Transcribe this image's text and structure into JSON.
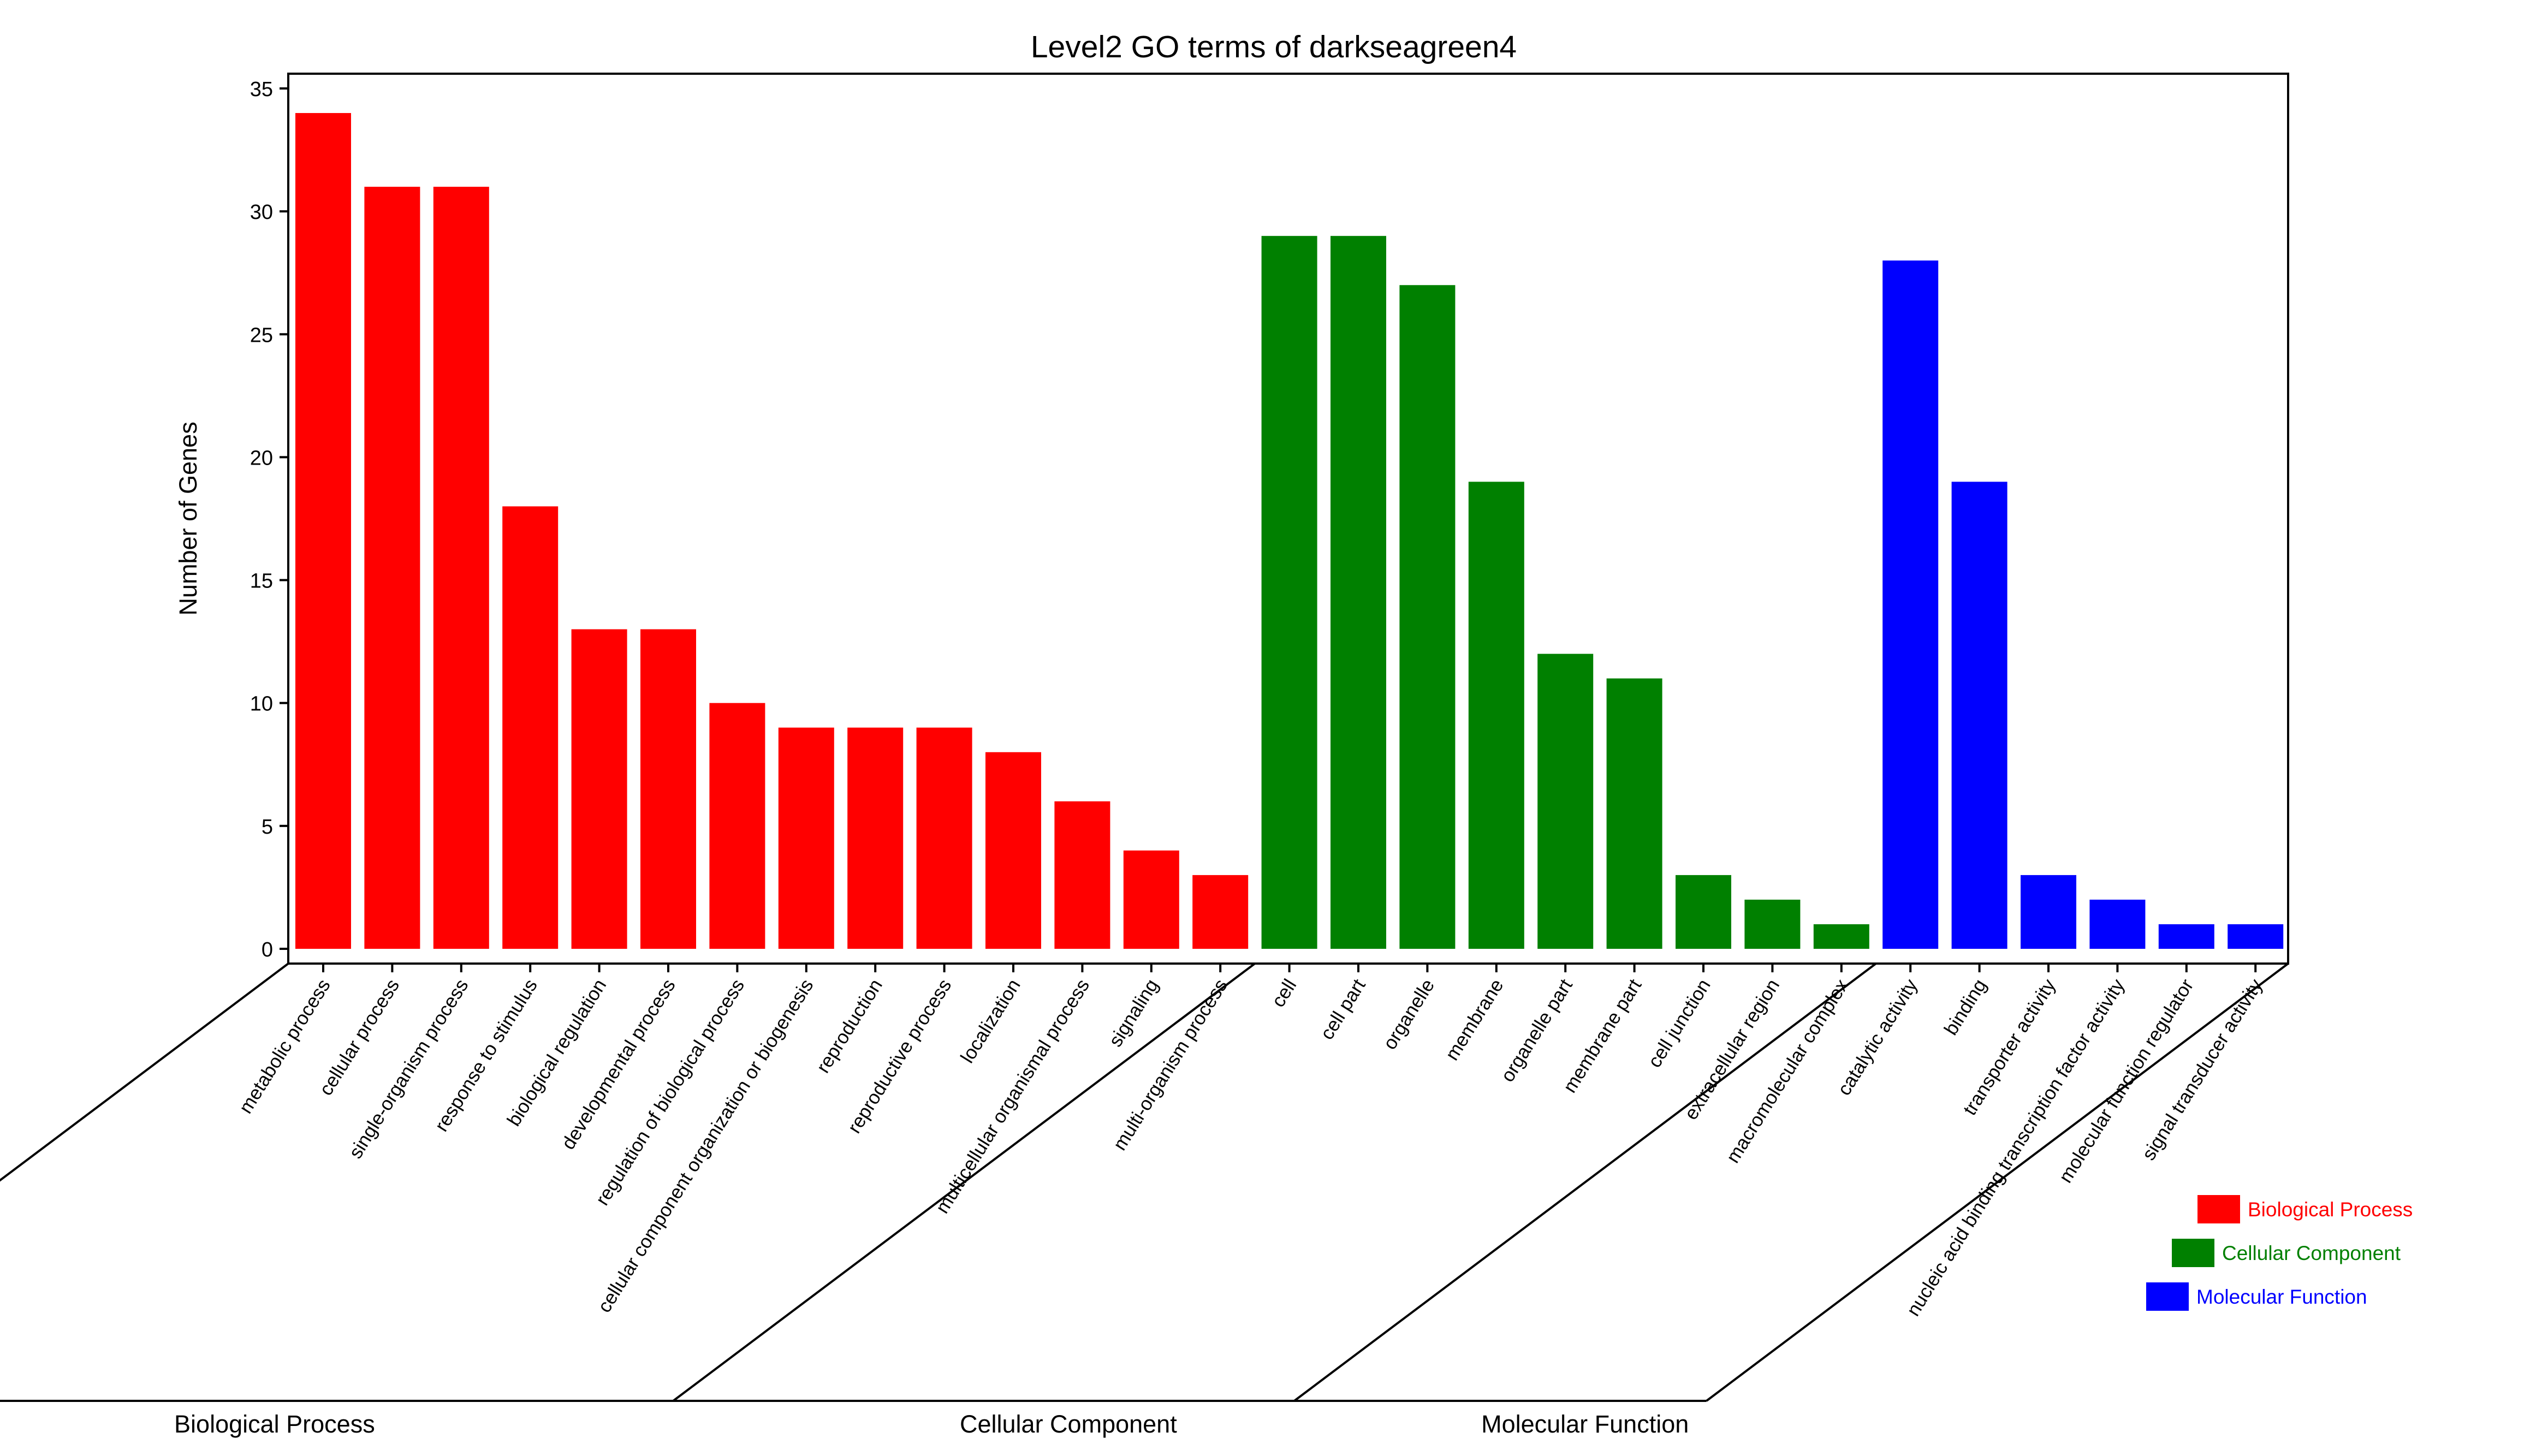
{
  "chart_data": {
    "type": "bar",
    "title": "Level2 GO terms of darkseagreen4",
    "ylabel": "Number of Genes",
    "xlabel": "",
    "ylim": [
      -0.6,
      35.6
    ],
    "yticks": [
      0,
      5,
      10,
      15,
      20,
      25,
      30,
      35
    ],
    "grid": false,
    "legend_position": "bottom-right",
    "groups": [
      {
        "name": "Biological Process",
        "color": "#ff0000",
        "categories": [
          "metabolic process",
          "cellular process",
          "single-organism process",
          "response to stimulus",
          "biological regulation",
          "developmental process",
          "regulation of biological process",
          "cellular component organization or biogenesis",
          "reproduction",
          "reproductive process",
          "localization",
          "multicellular organismal process",
          "signaling",
          "multi-organism process"
        ],
        "values": [
          34,
          31,
          31,
          18,
          13,
          13,
          10,
          9,
          9,
          9,
          8,
          6,
          4,
          3
        ]
      },
      {
        "name": "Cellular Component",
        "color": "#008000",
        "categories": [
          "cell",
          "cell part",
          "organelle",
          "membrane",
          "organelle part",
          "membrane part",
          "cell junction",
          "extracellular region",
          "macromolecular complex"
        ],
        "values": [
          29,
          29,
          27,
          19,
          12,
          11,
          3,
          2,
          1
        ]
      },
      {
        "name": "Molecular Function",
        "color": "#0000ff",
        "categories": [
          "catalytic activity",
          "binding",
          "transporter activity",
          "nucleic acid binding transcription factor activity",
          "molecular function regulator",
          "signal transducer activity"
        ],
        "values": [
          28,
          19,
          3,
          2,
          1,
          1
        ]
      }
    ]
  }
}
